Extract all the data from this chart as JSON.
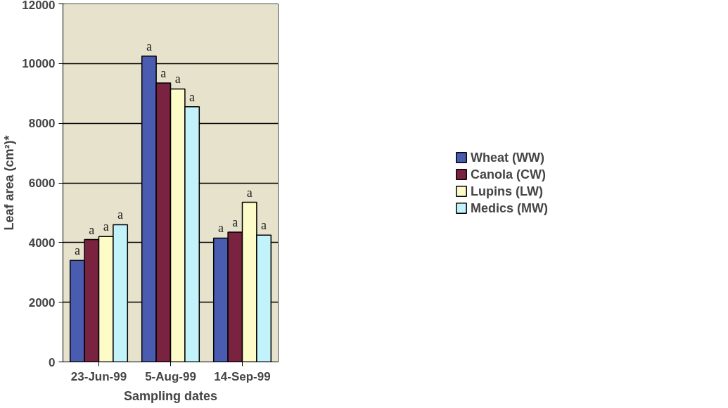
{
  "chart_data": {
    "type": "bar",
    "xlabel": "Sampling dates",
    "ylabel": "Leaf area (cm²)*",
    "categories": [
      "23-Jun-99",
      "5-Aug-99",
      "14-Sep-99"
    ],
    "series": [
      {
        "name": "Wheat (WW)",
        "color": "#4a5cb0",
        "values": [
          3400,
          10250,
          4150
        ],
        "value_labels": [
          "a",
          "a",
          "a"
        ]
      },
      {
        "name": "Canola (CW)",
        "color": "#7a2340",
        "values": [
          4100,
          9350,
          4350
        ],
        "value_labels": [
          "a",
          "a",
          "a"
        ]
      },
      {
        "name": "Lupins (LW)",
        "color": "#fdfbc8",
        "values": [
          4200,
          9150,
          5350
        ],
        "value_labels": [
          "a",
          "a",
          "a"
        ]
      },
      {
        "name": "Medics (MW)",
        "color": "#c2f3fb",
        "values": [
          4600,
          8550,
          4250
        ],
        "value_labels": [
          "a",
          "a",
          "a"
        ]
      }
    ],
    "ylim": [
      0,
      12000
    ],
    "yticks": [
      0,
      2000,
      4000,
      6000,
      8000,
      10000,
      12000
    ],
    "grid": "y",
    "legend": "right"
  }
}
